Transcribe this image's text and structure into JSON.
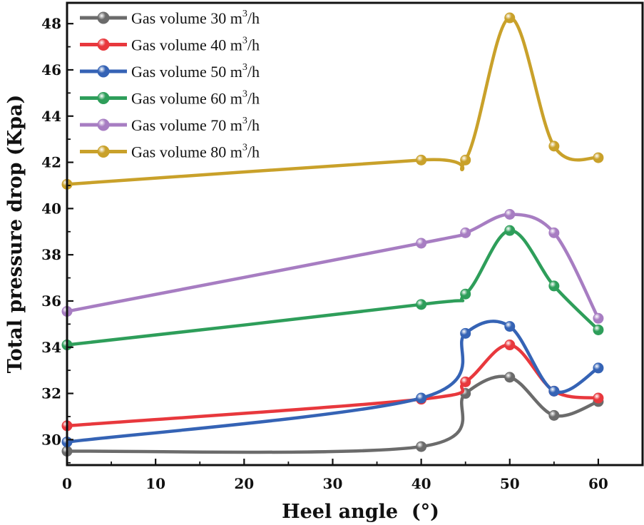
{
  "chart_data": {
    "type": "line",
    "title": "",
    "xlabel": "Heel angle  (°)",
    "ylabel": "Total pressure drop (Kpa)",
    "xlim": [
      0,
      65
    ],
    "ylim": [
      28.9,
      48.9
    ],
    "xticks": [
      0,
      10,
      20,
      30,
      40,
      50,
      60
    ],
    "yticks": [
      30,
      32,
      34,
      36,
      38,
      40,
      42,
      44,
      46,
      48
    ],
    "x": [
      0,
      40,
      45,
      50,
      55,
      60
    ],
    "legend_position": "top-left",
    "series": [
      {
        "name": "Gas volume 30 m3/h",
        "prefix": "Gas volume 30 m",
        "sup": "3",
        "suffix": "/h",
        "color": "#6b6b6b",
        "values": [
          29.5,
          29.7,
          32.0,
          32.7,
          31.05,
          31.65
        ]
      },
      {
        "name": "Gas volume 40 m3/h",
        "prefix": "Gas volume 40 m",
        "sup": "3",
        "suffix": "/h",
        "color": "#e8383d",
        "values": [
          30.6,
          31.75,
          32.5,
          34.1,
          32.1,
          31.8
        ]
      },
      {
        "name": "Gas volume 50 m3/h",
        "prefix": "Gas volume 50 m",
        "sup": "3",
        "suffix": "/h",
        "color": "#3563b5",
        "values": [
          29.9,
          31.8,
          34.6,
          34.9,
          32.1,
          33.1
        ]
      },
      {
        "name": "Gas volume 60 m3/h",
        "prefix": "Gas volume 60 m",
        "sup": "3",
        "suffix": "/h",
        "color": "#2e9e5a",
        "values": [
          34.1,
          35.85,
          36.3,
          39.05,
          36.65,
          34.75
        ]
      },
      {
        "name": "Gas volume 70 m3/h",
        "prefix": "Gas volume 70 m",
        "sup": "3",
        "suffix": "/h",
        "color": "#a77dc2",
        "values": [
          35.55,
          38.5,
          38.95,
          39.75,
          38.95,
          35.25
        ]
      },
      {
        "name": "Gas volume 80 m3/h",
        "prefix": "Gas volume 80 m",
        "sup": "3",
        "suffix": "/h",
        "color": "#c9a12a",
        "values": [
          41.05,
          42.1,
          42.1,
          48.25,
          42.7,
          42.2
        ]
      }
    ]
  }
}
